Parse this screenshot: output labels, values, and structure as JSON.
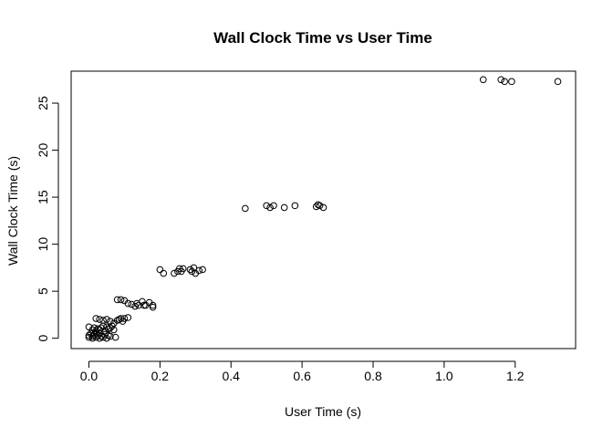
{
  "chart_data": {
    "type": "scatter",
    "title": "Wall Clock Time vs User Time",
    "xlabel": "User Time (s)",
    "ylabel": "Wall Clock Time (s)",
    "xlim": [
      -0.05,
      1.37
    ],
    "ylim": [
      -1.1,
      28.4
    ],
    "xticks": [
      0.0,
      0.2,
      0.4,
      0.6,
      0.8,
      1.0,
      1.2
    ],
    "xtick_labels": [
      "0.0",
      "0.2",
      "0.4",
      "0.6",
      "0.8",
      "1.0",
      "1.2"
    ],
    "yticks": [
      0,
      5,
      10,
      15,
      20,
      25
    ],
    "ytick_labels": [
      "0",
      "5",
      "10",
      "15",
      "20",
      "25"
    ],
    "grid": false,
    "legend": "none",
    "marker": "open-circle",
    "points": [
      [
        1.11,
        27.5
      ],
      [
        1.16,
        27.5
      ],
      [
        1.17,
        27.3
      ],
      [
        1.19,
        27.3
      ],
      [
        1.32,
        27.3
      ],
      [
        0.44,
        13.8
      ],
      [
        0.5,
        14.1
      ],
      [
        0.51,
        13.9
      ],
      [
        0.52,
        14.1
      ],
      [
        0.55,
        13.9
      ],
      [
        0.58,
        14.1
      ],
      [
        0.64,
        14.0
      ],
      [
        0.645,
        14.2
      ],
      [
        0.65,
        14.1
      ],
      [
        0.66,
        13.9
      ],
      [
        0.2,
        7.3
      ],
      [
        0.21,
        6.9
      ],
      [
        0.24,
        6.9
      ],
      [
        0.25,
        7.1
      ],
      [
        0.255,
        7.4
      ],
      [
        0.26,
        7.1
      ],
      [
        0.265,
        7.4
      ],
      [
        0.285,
        7.3
      ],
      [
        0.29,
        7.1
      ],
      [
        0.295,
        7.5
      ],
      [
        0.3,
        6.9
      ],
      [
        0.31,
        7.2
      ],
      [
        0.32,
        7.3
      ],
      [
        0.08,
        4.1
      ],
      [
        0.09,
        4.1
      ],
      [
        0.1,
        4.0
      ],
      [
        0.11,
        3.7
      ],
      [
        0.12,
        3.6
      ],
      [
        0.13,
        3.4
      ],
      [
        0.135,
        3.7
      ],
      [
        0.14,
        3.5
      ],
      [
        0.15,
        3.9
      ],
      [
        0.155,
        3.5
      ],
      [
        0.16,
        3.5
      ],
      [
        0.17,
        3.8
      ],
      [
        0.18,
        3.3
      ],
      [
        0.18,
        3.5
      ],
      [
        0.02,
        2.1
      ],
      [
        0.03,
        2.0
      ],
      [
        0.04,
        1.9
      ],
      [
        0.05,
        2.0
      ],
      [
        0.06,
        1.8
      ],
      [
        0.07,
        1.6
      ],
      [
        0.08,
        1.9
      ],
      [
        0.085,
        2.0
      ],
      [
        0.09,
        2.1
      ],
      [
        0.095,
        1.8
      ],
      [
        0.1,
        2.1
      ],
      [
        0.11,
        2.2
      ],
      [
        0.0,
        1.2
      ],
      [
        0.01,
        0.9
      ],
      [
        0.015,
        1.1
      ],
      [
        0.02,
        0.8
      ],
      [
        0.025,
        1.0
      ],
      [
        0.03,
        0.9
      ],
      [
        0.035,
        1.1
      ],
      [
        0.04,
        1.3
      ],
      [
        0.045,
        0.8
      ],
      [
        0.05,
        1.2
      ],
      [
        0.055,
        1.0
      ],
      [
        0.06,
        1.1
      ],
      [
        0.065,
        1.3
      ],
      [
        0.07,
        0.9
      ],
      [
        0.0,
        0.3
      ],
      [
        0.0,
        0.1
      ],
      [
        0.005,
        0.5
      ],
      [
        0.01,
        0.2
      ],
      [
        0.01,
        0.0
      ],
      [
        0.015,
        0.4
      ],
      [
        0.02,
        0.1
      ],
      [
        0.02,
        0.6
      ],
      [
        0.025,
        0.3
      ],
      [
        0.03,
        0.0
      ],
      [
        0.03,
        0.5
      ],
      [
        0.035,
        0.2
      ],
      [
        0.04,
        0.1
      ],
      [
        0.045,
        0.4
      ],
      [
        0.05,
        0.0
      ],
      [
        0.055,
        0.3
      ],
      [
        0.06,
        0.2
      ],
      [
        0.075,
        0.1
      ]
    ]
  }
}
